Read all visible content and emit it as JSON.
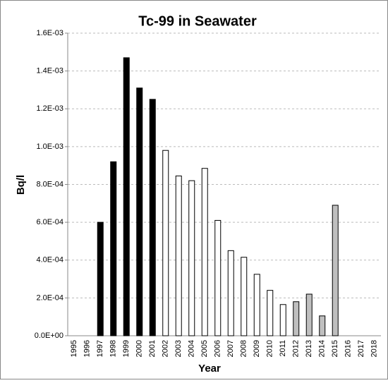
{
  "chart_data": {
    "type": "bar",
    "title": "Tc-99 in Seawater",
    "x_label": "Year",
    "y_label": "Bq/l",
    "categories": [
      "1995",
      "1996",
      "1997",
      "1998",
      "1999",
      "2000",
      "2001",
      "2002",
      "2003",
      "2004",
      "2005",
      "2006",
      "2007",
      "2008",
      "2009",
      "2010",
      "2011",
      "2012",
      "2013",
      "2014",
      "2015",
      "2016",
      "2017",
      "2018"
    ],
    "values": [
      null,
      null,
      0.0006,
      0.00092,
      0.00147,
      0.00131,
      0.00125,
      0.00098,
      0.000845,
      0.00082,
      0.000885,
      0.00061,
      0.00045,
      0.000415,
      0.000325,
      0.00024,
      0.000165,
      0.00018,
      0.00022,
      0.000105,
      0.00069,
      null,
      null,
      null
    ],
    "colors": [
      null,
      null,
      "#000000",
      "#000000",
      "#000000",
      "#000000",
      "#000000",
      "#ffffff",
      "#ffffff",
      "#ffffff",
      "#ffffff",
      "#ffffff",
      "#ffffff",
      "#ffffff",
      "#ffffff",
      "#ffffff",
      "#ffffff",
      "#bfbfbf",
      "#bfbfbf",
      "#bfbfbf",
      "#bfbfbf",
      null,
      null,
      null
    ],
    "ylim": [
      0,
      0.0016
    ],
    "yticks": [
      {
        "value": 0,
        "label": "0.0E+00"
      },
      {
        "value": 0.0002,
        "label": "2.0E-04"
      },
      {
        "value": 0.0004,
        "label": "4.0E-04"
      },
      {
        "value": 0.0006,
        "label": "6.0E-04"
      },
      {
        "value": 0.0008,
        "label": "8.0E-04"
      },
      {
        "value": 0.001,
        "label": "1.0E-03"
      },
      {
        "value": 0.0012,
        "label": "1.2E-03"
      },
      {
        "value": 0.0014,
        "label": "1.4E-03"
      },
      {
        "value": 0.0016,
        "label": "1.6E-03"
      }
    ],
    "grid": true
  }
}
